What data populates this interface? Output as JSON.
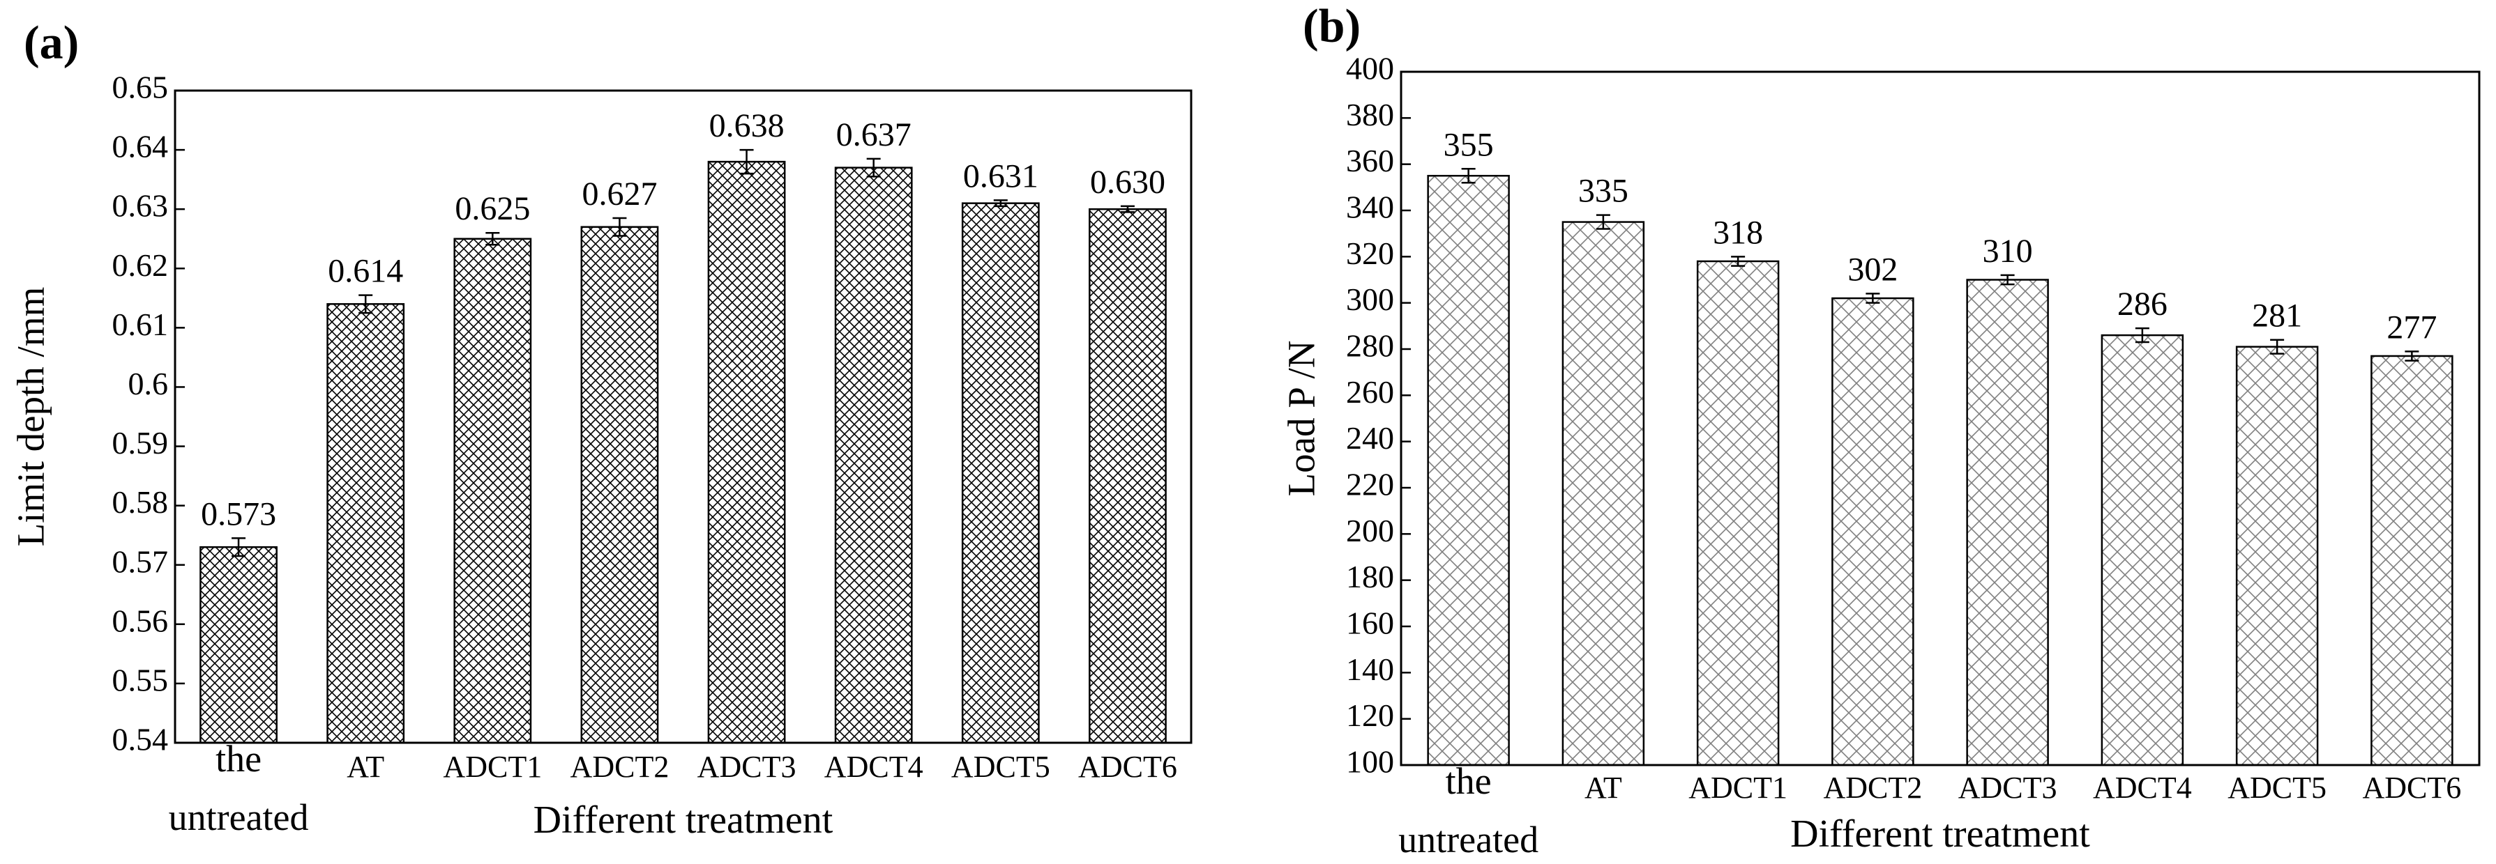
{
  "chart_data": [
    {
      "type": "bar",
      "panel_label": "(a)",
      "y_label": "Limit depth /mm",
      "x_label": "Different treatment",
      "categories": [
        "the untreated",
        "AT",
        "ADCT1",
        "ADCT2",
        "ADCT3",
        "ADCT4",
        "ADCT5",
        "ADCT6"
      ],
      "values": [
        0.573,
        0.614,
        0.625,
        0.627,
        0.638,
        0.637,
        0.631,
        0.63
      ],
      "value_labels": [
        "0.573",
        "0.614",
        "0.625",
        "0.627",
        "0.638",
        "0.637",
        "0.631",
        "0.630"
      ],
      "errors": [
        0.0015,
        0.0015,
        0.001,
        0.0015,
        0.002,
        0.0015,
        0.0005,
        0.0005
      ],
      "color": "#000000",
      "ylim": [
        0.54,
        0.65
      ],
      "yticks": [
        0.54,
        0.55,
        0.56,
        0.57,
        0.58,
        0.59,
        0.6,
        0.61,
        0.62,
        0.63,
        0.64,
        0.65
      ]
    },
    {
      "type": "bar",
      "panel_label": "(b)",
      "y_label": "Load P /N",
      "x_label": "Different treatment",
      "categories": [
        "the untreated",
        "AT",
        "ADCT1",
        "ADCT2",
        "ADCT3",
        "ADCT4",
        "ADCT5",
        "ADCT6"
      ],
      "values": [
        355,
        335,
        318,
        302,
        310,
        286,
        281,
        277
      ],
      "errors": [
        3,
        3,
        2,
        2,
        2,
        3,
        3,
        2
      ],
      "color": "#808080",
      "ylim": [
        100,
        400
      ],
      "yticks": [
        100,
        120,
        140,
        160,
        180,
        200,
        220,
        240,
        260,
        280,
        300,
        320,
        340,
        360,
        380,
        400
      ]
    }
  ]
}
